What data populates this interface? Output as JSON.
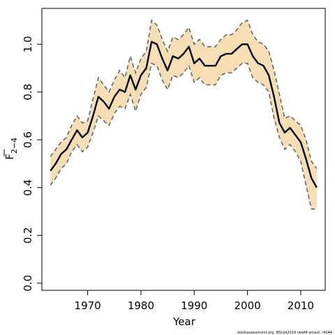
{
  "chart_data": {
    "type": "line",
    "xlabel": "Year",
    "ylabel": "F",
    "ylabel_subscript": "2−4",
    "credit": "stockassessment.org, NScod2014 newM-antest, r4044",
    "xlim": [
      1961.4,
      2014.6
    ],
    "ylim": [
      -0.03,
      1.15
    ],
    "x_ticks": [
      1970,
      1980,
      1990,
      2000,
      2010
    ],
    "x_tick_labels": [
      "1970",
      "1980",
      "1990",
      "2000",
      "2010"
    ],
    "y_ticks": [
      0.0,
      0.2,
      0.4,
      0.6,
      0.8,
      1.0
    ],
    "y_tick_labels": [
      "0.0",
      "0.2",
      "0.4",
      "0.6",
      "0.8",
      "1.0"
    ],
    "colors": {
      "band": "#f5deb3",
      "line": "#000000",
      "bounds": "#666666"
    },
    "series": [
      {
        "role": "estimate",
        "x": [
          1963,
          1964,
          1965,
          1966,
          1967,
          1968,
          1969,
          1970,
          1971,
          1972,
          1973,
          1974,
          1975,
          1976,
          1977,
          1978,
          1979,
          1980,
          1981,
          1982,
          1983,
          1984,
          1985,
          1986,
          1987,
          1988,
          1989,
          1990,
          1991,
          1992,
          1993,
          1994,
          1995,
          1996,
          1997,
          1998,
          1999,
          2000,
          2001,
          2002,
          2003,
          2004,
          2005,
          2006,
          2007,
          2008,
          2009,
          2010,
          2011,
          2012,
          2013
        ],
        "y": [
          0.47,
          0.5,
          0.54,
          0.56,
          0.6,
          0.64,
          0.61,
          0.63,
          0.7,
          0.78,
          0.76,
          0.73,
          0.78,
          0.81,
          0.8,
          0.87,
          0.81,
          0.87,
          0.9,
          1.01,
          1.0,
          0.94,
          0.89,
          0.95,
          0.94,
          0.96,
          0.99,
          0.92,
          0.94,
          0.91,
          0.91,
          0.91,
          0.95,
          0.96,
          0.96,
          0.98,
          1.0,
          1.0,
          0.95,
          0.92,
          0.91,
          0.87,
          0.78,
          0.67,
          0.63,
          0.65,
          0.62,
          0.59,
          0.52,
          0.44,
          0.4
        ]
      },
      {
        "role": "upper",
        "x": [
          1963,
          1964,
          1965,
          1966,
          1967,
          1968,
          1969,
          1970,
          1971,
          1972,
          1973,
          1974,
          1975,
          1976,
          1977,
          1978,
          1979,
          1980,
          1981,
          1982,
          1983,
          1984,
          1985,
          1986,
          1987,
          1988,
          1989,
          1990,
          1991,
          1992,
          1993,
          1994,
          1995,
          1996,
          1997,
          1998,
          1999,
          2000,
          2001,
          2002,
          2003,
          2004,
          2005,
          2006,
          2007,
          2008,
          2009,
          2010,
          2011,
          2012,
          2013
        ],
        "y": [
          0.53,
          0.56,
          0.59,
          0.61,
          0.66,
          0.7,
          0.67,
          0.68,
          0.77,
          0.86,
          0.83,
          0.8,
          0.85,
          0.89,
          0.86,
          0.95,
          0.88,
          0.94,
          0.97,
          1.1,
          1.08,
          1.02,
          0.97,
          1.03,
          1.02,
          1.04,
          1.07,
          1.0,
          1.02,
          0.99,
          0.99,
          0.99,
          1.02,
          1.04,
          1.04,
          1.06,
          1.09,
          1.1,
          1.04,
          1.01,
          1.0,
          0.97,
          0.89,
          0.79,
          0.69,
          0.7,
          0.68,
          0.66,
          0.6,
          0.51,
          0.48
        ]
      },
      {
        "role": "lower",
        "x": [
          1963,
          1964,
          1965,
          1966,
          1967,
          1968,
          1969,
          1970,
          1971,
          1972,
          1973,
          1974,
          1975,
          1976,
          1977,
          1978,
          1979,
          1980,
          1981,
          1982,
          1983,
          1984,
          1985,
          1986,
          1987,
          1988,
          1989,
          1990,
          1991,
          1992,
          1993,
          1994,
          1995,
          1996,
          1997,
          1998,
          1999,
          2000,
          2001,
          2002,
          2003,
          2004,
          2005,
          2006,
          2007,
          2008,
          2009,
          2010,
          2011,
          2012,
          2013
        ],
        "y": [
          0.41,
          0.44,
          0.48,
          0.5,
          0.55,
          0.58,
          0.55,
          0.57,
          0.63,
          0.7,
          0.68,
          0.66,
          0.71,
          0.74,
          0.73,
          0.79,
          0.72,
          0.79,
          0.82,
          0.92,
          0.91,
          0.85,
          0.81,
          0.87,
          0.86,
          0.88,
          0.91,
          0.84,
          0.86,
          0.83,
          0.83,
          0.83,
          0.87,
          0.88,
          0.88,
          0.9,
          0.92,
          0.92,
          0.86,
          0.84,
          0.83,
          0.8,
          0.69,
          0.61,
          0.56,
          0.58,
          0.55,
          0.51,
          0.41,
          0.31,
          0.31
        ]
      }
    ]
  }
}
